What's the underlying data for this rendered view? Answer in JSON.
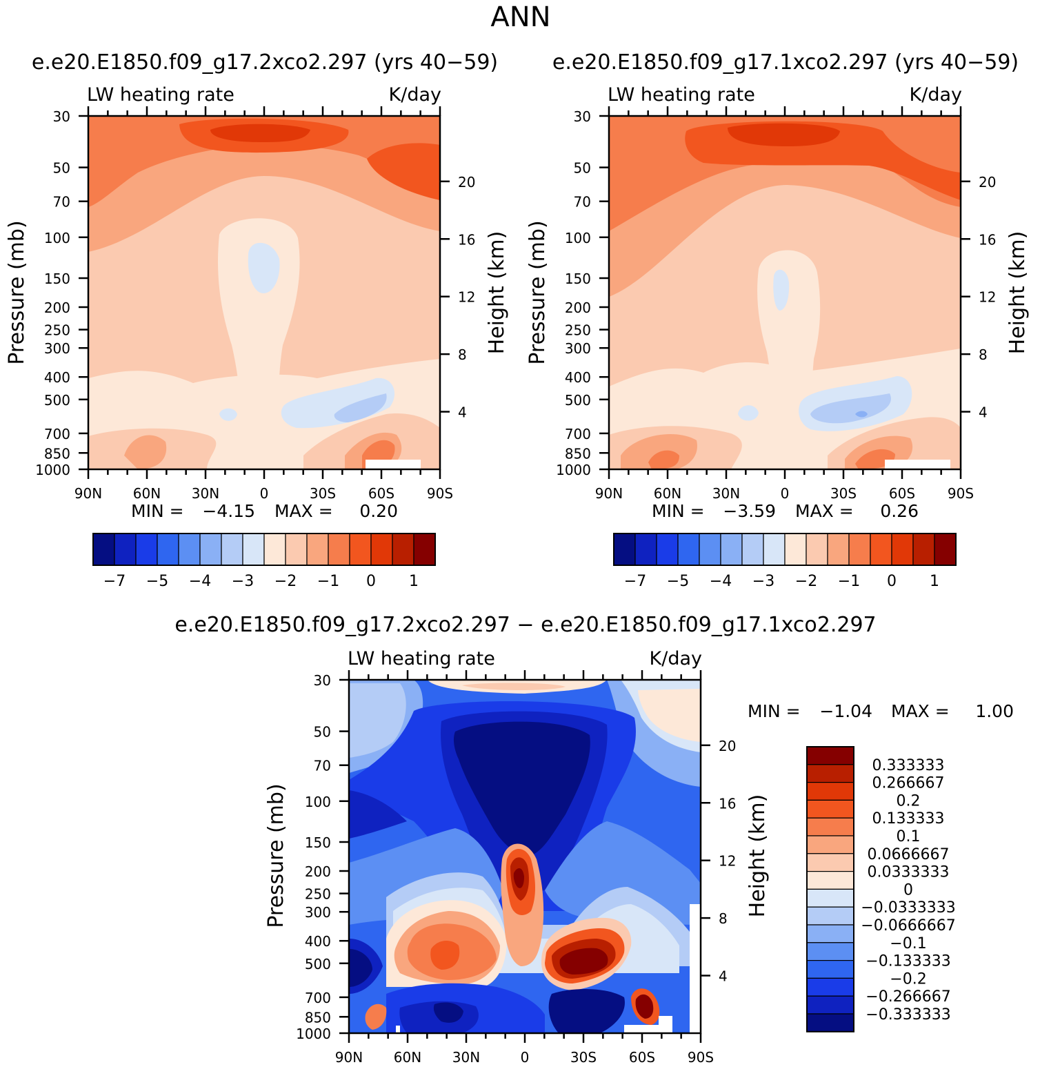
{
  "page_title": "ANN",
  "colors": {
    "warm": [
      "#fde8d8",
      "#fbcab0",
      "#f9a67e",
      "#f67d4c",
      "#f2561f",
      "#e13807",
      "#b81f00",
      "#850000"
    ],
    "cool": [
      "#d8e6f8",
      "#b4ccf6",
      "#8ab0f5",
      "#5c8ff3",
      "#2f66f0",
      "#1a3ce8",
      "#0f22c0",
      "#050e82"
    ],
    "missing": "#ffffff"
  },
  "chart_data": [
    {
      "id": "panel1",
      "type": "heatmap",
      "title": "e.e20.E1850.f09_g17.2xco2.297 (yrs 40−59)",
      "field_label": "LW heating rate",
      "units": "K/day",
      "xlabel": "",
      "ylabel": "Pressure (mb)",
      "ylabel_right": "Height (km)",
      "x_ticks": [
        "90N",
        "60N",
        "30N",
        "0",
        "30S",
        "60S",
        "90S"
      ],
      "y_ticks": [
        "30",
        "50",
        "70",
        "100",
        "150",
        "200",
        "250",
        "300",
        "400",
        "500",
        "700",
        "850",
        "1000"
      ],
      "y_right_ticks": [
        "20",
        "16",
        "12",
        "8",
        "4"
      ],
      "stats": {
        "min_label": "MIN =",
        "min": "−4.15",
        "max_label": "MAX =",
        "max": "0.20"
      },
      "colorbar_labels": [
        "−7",
        "−5",
        "−4",
        "−3",
        "−2",
        "−1",
        "0",
        "1"
      ]
    },
    {
      "id": "panel2",
      "type": "heatmap",
      "title": "e.e20.E1850.f09_g17.1xco2.297 (yrs 40−59)",
      "field_label": "LW heating rate",
      "units": "K/day",
      "xlabel": "",
      "ylabel": "Pressure (mb)",
      "ylabel_right": "Height (km)",
      "x_ticks": [
        "90N",
        "60N",
        "30N",
        "0",
        "30S",
        "60S",
        "90S"
      ],
      "y_ticks": [
        "30",
        "50",
        "70",
        "100",
        "150",
        "200",
        "250",
        "300",
        "400",
        "500",
        "700",
        "850",
        "1000"
      ],
      "y_right_ticks": [
        "20",
        "16",
        "12",
        "8",
        "4"
      ],
      "stats": {
        "min_label": "MIN =",
        "min": "−3.59",
        "max_label": "MAX =",
        "max": "0.26"
      },
      "colorbar_labels": [
        "−7",
        "−5",
        "−4",
        "−3",
        "−2",
        "−1",
        "0",
        "1"
      ]
    },
    {
      "id": "panel3",
      "type": "heatmap",
      "title": "e.e20.E1850.f09_g17.2xco2.297 − e.e20.E1850.f09_g17.1xco2.297",
      "field_label": "LW heating rate",
      "units": "K/day",
      "xlabel": "",
      "ylabel": "Pressure (mb)",
      "ylabel_right": "Height (km)",
      "x_ticks": [
        "90N",
        "60N",
        "30N",
        "0",
        "30S",
        "60S",
        "90S"
      ],
      "y_ticks": [
        "30",
        "50",
        "70",
        "100",
        "150",
        "200",
        "250",
        "300",
        "400",
        "500",
        "700",
        "850",
        "1000"
      ],
      "y_right_ticks": [
        "20",
        "16",
        "12",
        "8",
        "4"
      ],
      "stats": {
        "min_label": "MIN =",
        "min": "−1.04",
        "max_label": "MAX =",
        "max": "1.00"
      },
      "colorbar_labels": [
        "0.333333",
        "0.266667",
        "0.2",
        "0.133333",
        "0.1",
        "0.0666667",
        "0.0333333",
        "0",
        "−0.0333333",
        "−0.0666667",
        "−0.1",
        "−0.133333",
        "−0.2",
        "−0.266667",
        "−0.333333"
      ]
    }
  ]
}
